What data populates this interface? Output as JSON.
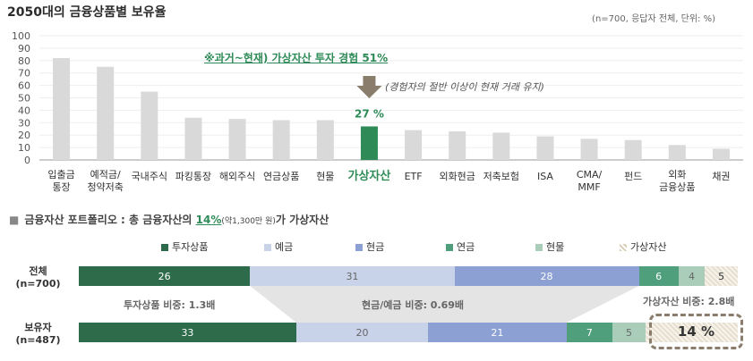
{
  "title": "2050대의 금융상품별 보유율",
  "note": "(n=700, 응답자 전체, 단위: %)",
  "highlight_text": "※과거~현재) 가상자산 투자 경험 51%",
  "highlight_sub": "(경험자의 절반 이상이 현재 거래 유지)",
  "colors": {
    "gray_bar": "#d9d9d9",
    "highlight_bar": "#2e8b57",
    "arrow": "#8a7d6c"
  },
  "chart_data": [
    {
      "type": "bar",
      "categories": [
        "입출금\n통장",
        "예적금/\n청약저축",
        "국내주식",
        "파킹통장",
        "해외주식",
        "연금상품",
        "현물",
        "가상자산",
        "ETF",
        "외화현금",
        "저축보험",
        "ISA",
        "CMA/\nMMF",
        "펀드",
        "외화\n금융상품",
        "채권"
      ],
      "values": [
        82,
        75,
        55,
        34,
        33,
        32,
        32,
        27,
        24,
        23,
        22,
        19,
        17,
        16,
        12,
        9
      ],
      "highlight_index": 7,
      "data_labels": {
        "7": "27 %"
      },
      "yticks": [
        0,
        10,
        20,
        30,
        40,
        50,
        60,
        70,
        80,
        90,
        100
      ],
      "ylim": [
        0,
        100
      ],
      "grid": true
    },
    {
      "type": "bar",
      "orientation": "horizontal",
      "stacked": true,
      "categories": [
        "전체\n(n=700)",
        "보유자\n(n=487)"
      ],
      "series": [
        {
          "name": "투자상품",
          "color": "#2e6b4a",
          "values": [
            26,
            33
          ]
        },
        {
          "name": "예금",
          "color": "#c8d3ea",
          "values": [
            31,
            20
          ]
        },
        {
          "name": "현금",
          "color": "#8da0d4",
          "values": [
            28,
            21
          ]
        },
        {
          "name": "연금",
          "color": "#4f9e7c",
          "values": [
            6,
            7
          ]
        },
        {
          "name": "현물",
          "color": "#a9cdb9",
          "values": [
            4,
            5
          ]
        },
        {
          "name": "가상자산",
          "color": "#e6dfcf",
          "values": [
            5,
            14
          ]
        }
      ]
    }
  ],
  "section": {
    "prefix": "금융자산 포트폴리오 : 총 금융자산의 ",
    "pct": "14%",
    "small": "(약1,300만 원)",
    "suffix": "가 가상자산"
  },
  "row_labels": [
    "전체",
    "(n=700)",
    "보유자",
    "(n=487)"
  ],
  "ratios": {
    "investment": "투자상품 비중: 1.3배",
    "cash_deposit": "현금/예금 비중: 0.69배",
    "virtual": "가상자산 비중: 2.8배"
  },
  "box_label": "14 %"
}
